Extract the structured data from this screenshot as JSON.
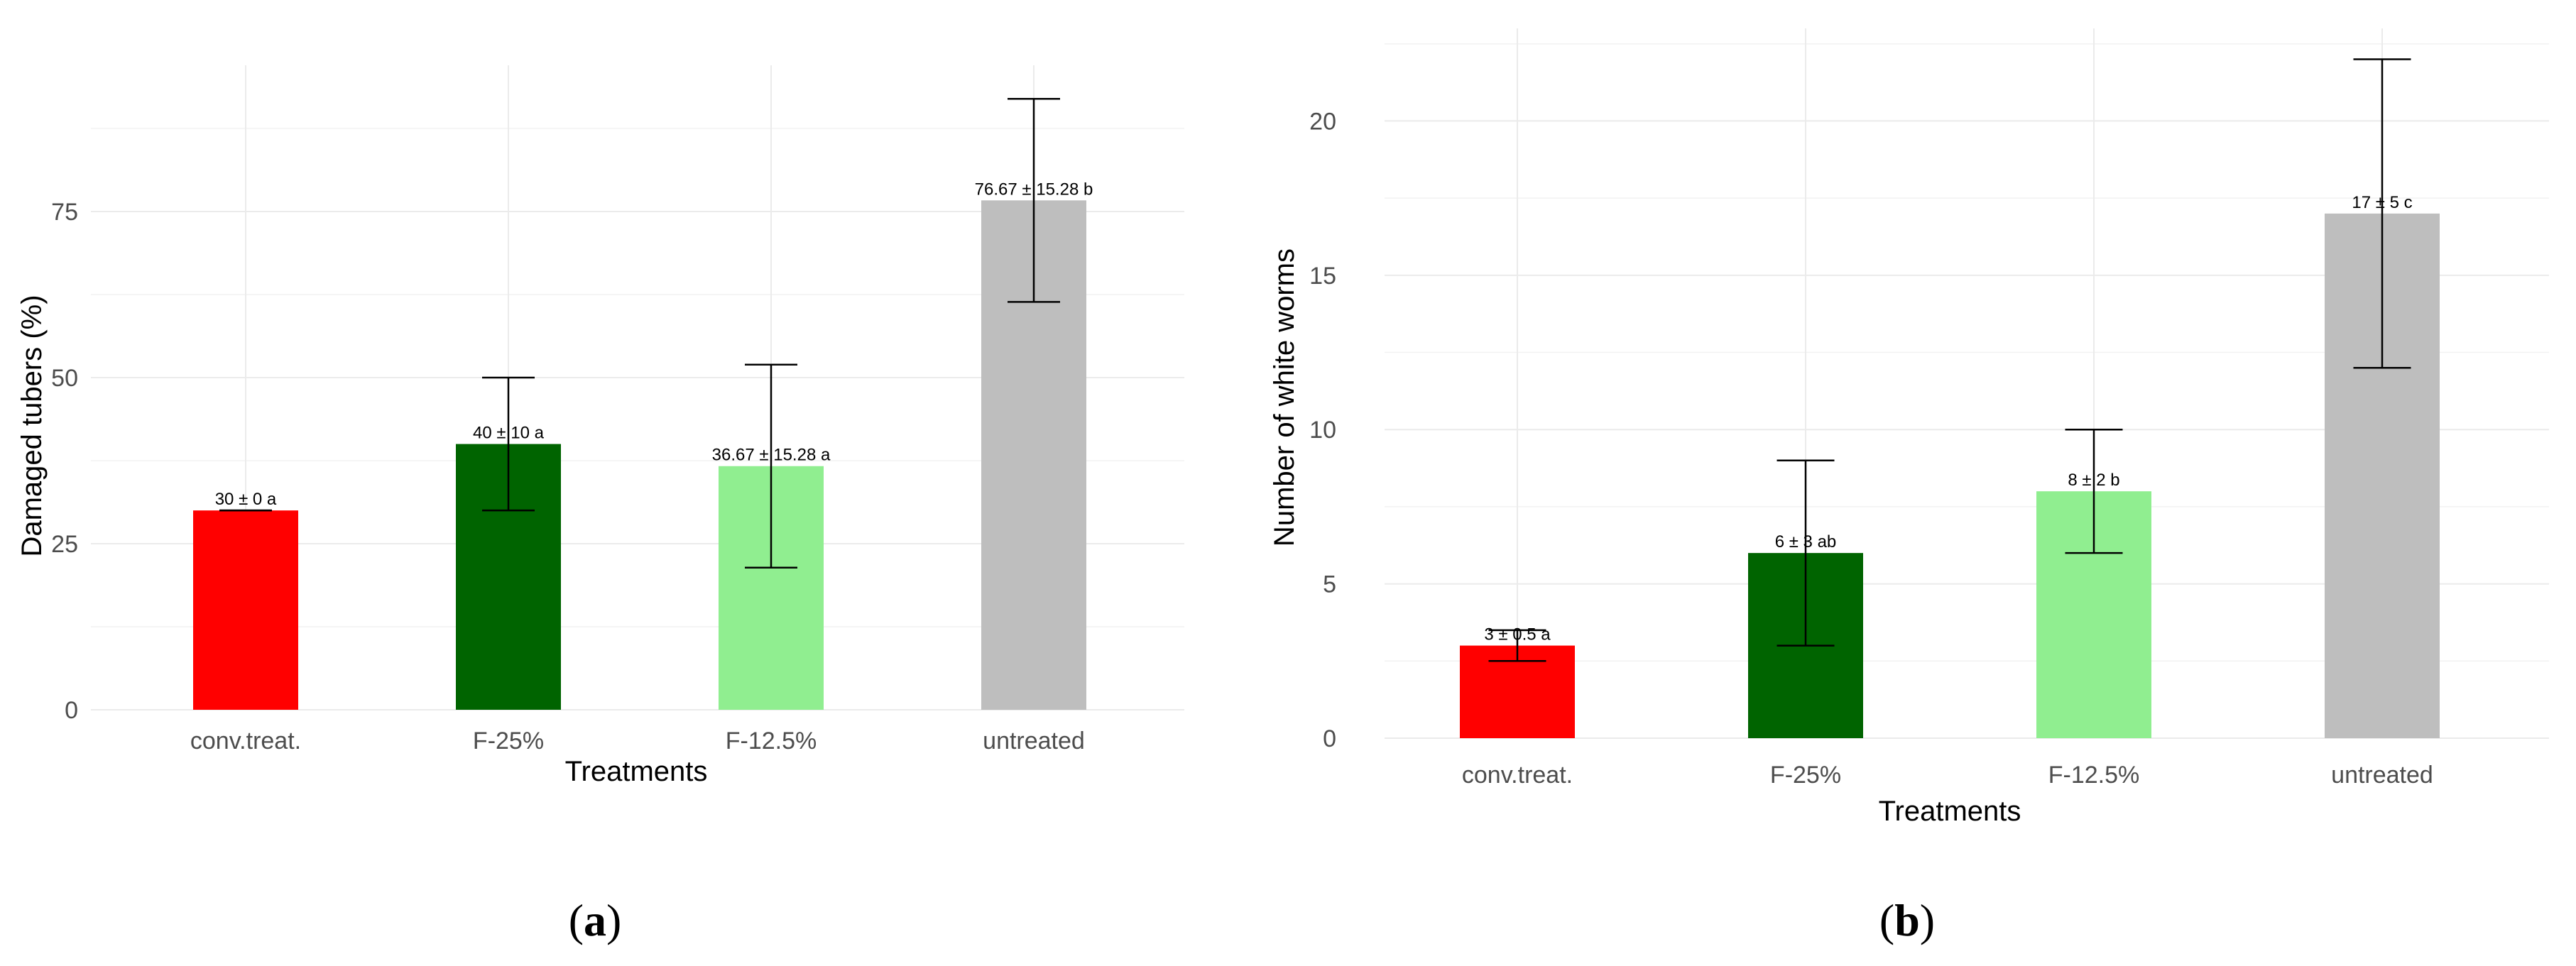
{
  "chart_data": [
    {
      "type": "bar",
      "panel_label": {
        "open": "(",
        "letter": "a",
        "close": ")"
      },
      "categories": [
        "conv.treat.",
        "F-25%",
        "F-12.5%",
        "untreated"
      ],
      "values": [
        30,
        40,
        36.67,
        76.67
      ],
      "errors": [
        0,
        10,
        15.28,
        15.28
      ],
      "bar_labels": [
        "30 ± 0  a",
        "40 ± 10  a",
        "36.67 ± 15.28  a",
        "76.67 ± 15.28  b"
      ],
      "colors": [
        "#ff0000",
        "#006400",
        "#90ee90",
        "#bebebe"
      ],
      "xlabel": "Treatments",
      "ylabel": "Damaged tubers (%)",
      "ylim": [
        0,
        97
      ],
      "yticks": [
        0,
        25,
        50,
        75
      ],
      "ytick_labels": [
        "0",
        "25",
        "50",
        "75"
      ],
      "grid": true,
      "legend": "none"
    },
    {
      "type": "bar",
      "panel_label": {
        "open": "(",
        "letter": "b",
        "close": ")"
      },
      "categories": [
        "conv.treat.",
        "F-25%",
        "F-12.5%",
        "untreated"
      ],
      "values": [
        3,
        6,
        8,
        17
      ],
      "errors": [
        0.5,
        3,
        2,
        5
      ],
      "bar_labels": [
        "3 ± 0.5  a",
        "6 ± 3  ab",
        "8 ± 2  b",
        "17 ± 5  c"
      ],
      "colors": [
        "#ff0000",
        "#006400",
        "#90ee90",
        "#bebebe"
      ],
      "xlabel": "Treatments",
      "ylabel": "Number of white worms",
      "ylim": [
        0,
        23
      ],
      "yticks": [
        0,
        5,
        10,
        15,
        20
      ],
      "ytick_labels": [
        "0",
        "5",
        "10",
        "15",
        "20"
      ],
      "grid": true,
      "legend": "none"
    }
  ]
}
